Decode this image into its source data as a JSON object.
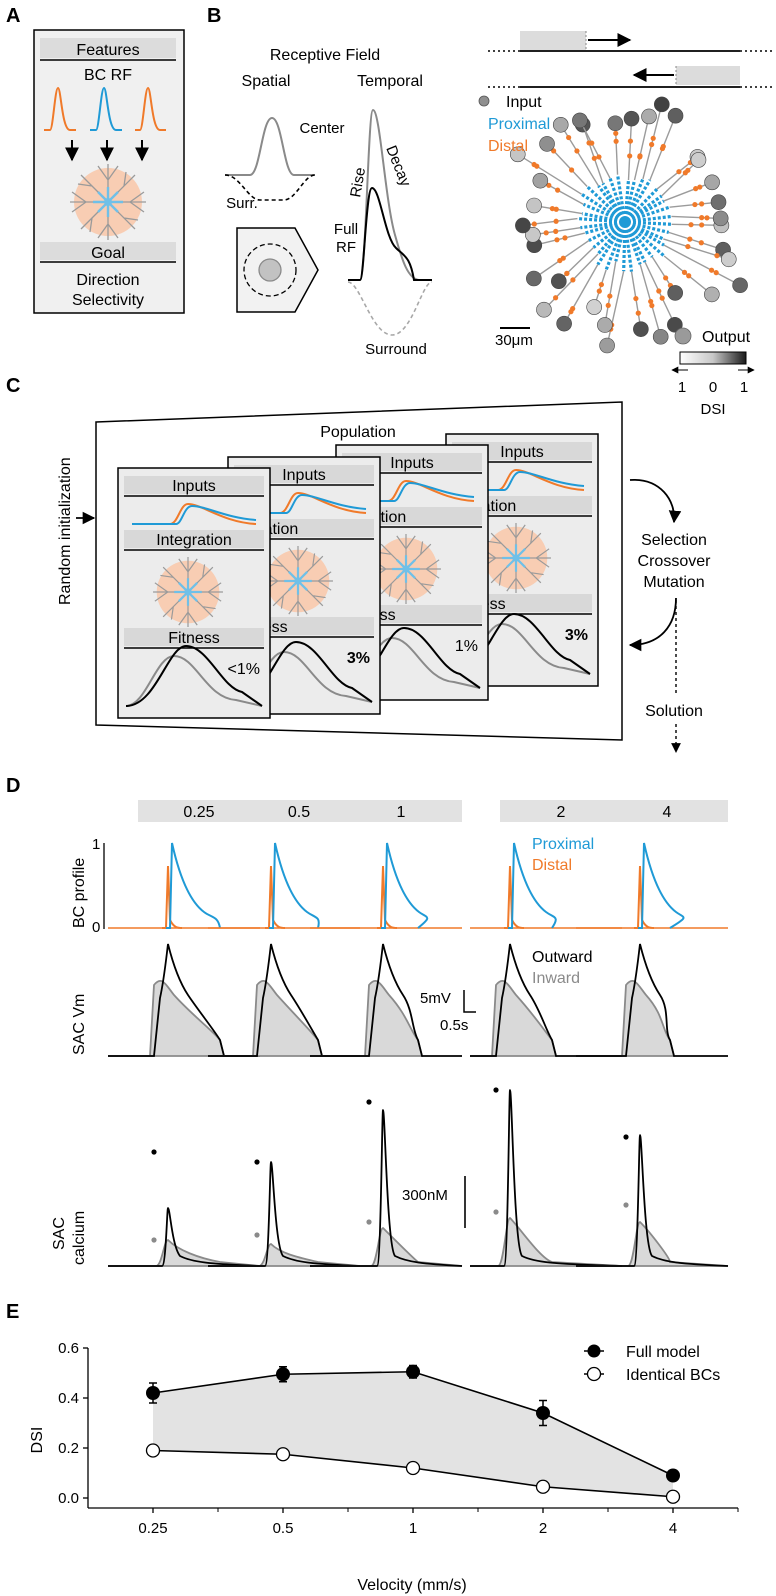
{
  "panel_letters": [
    "A",
    "B",
    "C",
    "D",
    "E"
  ],
  "panelA": {
    "features": "Features",
    "bc_rf": "BC RF",
    "goal": "Goal",
    "direction": "Direction",
    "selectivity": "Selectivity"
  },
  "panelB": {
    "receptive_field": "Receptive Field",
    "spatial": "Spatial",
    "temporal": "Temporal",
    "center": "Center",
    "surr": "Surr.",
    "rise": "Rise",
    "decay": "Decay",
    "full": "Full",
    "rf": "RF",
    "surround": "Surround",
    "input": "Input",
    "proximal": "Proximal",
    "distal": "Distal",
    "scale": "30μm",
    "output": "Output",
    "dsi_ticks": [
      "1",
      "0",
      "1"
    ],
    "dsi": "DSI"
  },
  "panelC": {
    "random_init": "Random initialization",
    "population": "Population",
    "inputs": "Inputs",
    "integration": "Integration",
    "integration_clipped": "tegration",
    "fitness": "Fitness",
    "fitness_values": [
      "<1%",
      "3%",
      "1%",
      "3%"
    ],
    "selection": "Selection",
    "crossover": "Crossover",
    "mutation": "Mutation",
    "solution": "Solution"
  },
  "panelD": {
    "velocities": [
      "0.25",
      "0.5",
      "1",
      "2",
      "4"
    ],
    "bc_profile": "BC profile",
    "y1": "1",
    "y0": "0",
    "proximal": "Proximal",
    "distal": "Distal",
    "sac_vm": "SAC Vm",
    "outward": "Outward",
    "inward": "Inward",
    "scale_mv": "5mV",
    "scale_s": "0.5s",
    "sac": "SAC",
    "calcium": "calcium",
    "scale_nm": "300nM"
  },
  "colors": {
    "proximal": "#1f9ad6",
    "distal": "#f07a2a",
    "outward": "#000000",
    "inward": "#8a8a8a",
    "fill": "#d9d9d9"
  },
  "chart_data": {
    "type": "line",
    "title": "",
    "xlabel": "Velocity (mm/s)",
    "ylabel": "DSI",
    "categories": [
      "0.25",
      "0.5",
      "1",
      "2",
      "4"
    ],
    "xscale": "log",
    "ylim": [
      0,
      0.6
    ],
    "yticks": [
      "0.0",
      "0.2",
      "0.4",
      "0.6"
    ],
    "legend_position": "top-right",
    "series": [
      {
        "name": "Full model",
        "values": [
          0.42,
          0.495,
          0.505,
          0.34,
          0.09
        ],
        "errors": [
          0.04,
          0.03,
          0.025,
          0.05,
          0.02
        ],
        "marker": "filled"
      },
      {
        "name": "Identical BCs",
        "values": [
          0.19,
          0.175,
          0.12,
          0.045,
          0.005
        ],
        "marker": "open"
      }
    ]
  }
}
